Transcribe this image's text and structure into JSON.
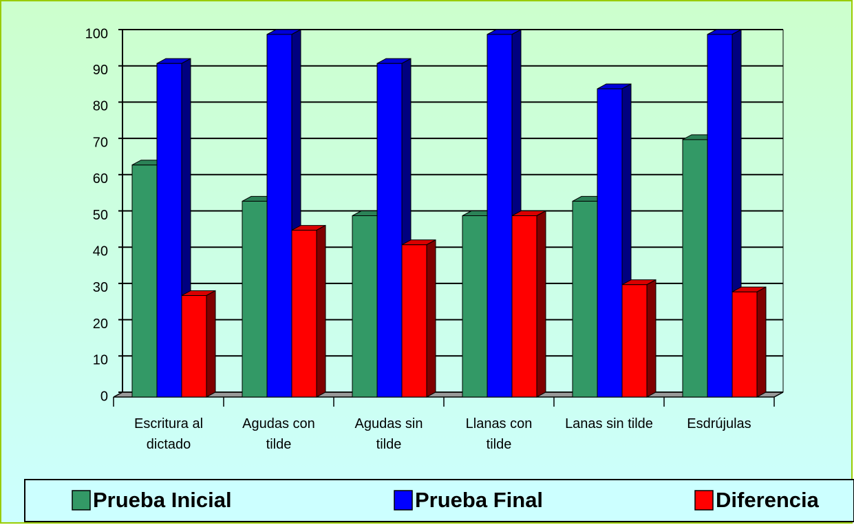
{
  "chart_data": {
    "type": "bar3d",
    "categories": [
      "Escritura al dictado",
      "Agudas con tilde",
      "Agudas sin tilde",
      "Llanas con tilde",
      "Lanas sin tilde",
      "Esdrújulas"
    ],
    "series": [
      {
        "name": "Prueba Inicial",
        "color": "#339966",
        "values": [
          64,
          54,
          50,
          50,
          54,
          71
        ]
      },
      {
        "name": "Prueba Final",
        "color": "#0000ff",
        "values": [
          92,
          100,
          92,
          100,
          85,
          100
        ]
      },
      {
        "name": "Diferencia",
        "color": "#ff0000",
        "values": [
          28,
          46,
          42,
          50,
          31,
          29
        ]
      }
    ],
    "ylim": [
      0,
      100
    ],
    "yticks": [
      0,
      10,
      20,
      30,
      40,
      50,
      60,
      70,
      80,
      90,
      100
    ],
    "grid": true
  }
}
